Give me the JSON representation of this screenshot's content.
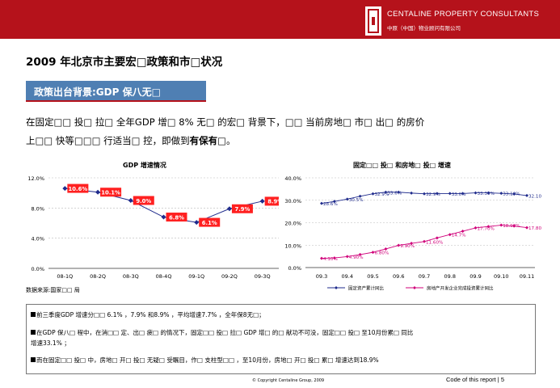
{
  "header": {
    "brand_en": "CENTALINE PROPERTY CONSULTANTS",
    "brand_cn": "中原（中国）物业顾问有限公司",
    "logo_icon": "centaline-logo-icon",
    "bar_color": "#b5121b"
  },
  "title": "2009 年北京市主要宏□政策和市□状况",
  "section_label": "政策出台背景:GDP 保八无□",
  "body": {
    "line1": "在固定□□ 投□ 拉□ 全年GDP 增□ 8% 无□ 的宏□ 背景下，□□ 当前房地□ 市□ 出□ 的房价",
    "line2_prefix": "上□□ 快等□□□ 行适当□ 控，即做到",
    "line2_bold": "有保有□",
    "line2_suffix": "。"
  },
  "chart_data": [
    {
      "type": "line",
      "title": "GDP 增速情况",
      "categories": [
        "08-1Q",
        "08-2Q",
        "08-3Q",
        "08-4Q",
        "09-1Q",
        "09-2Q",
        "09-3Q"
      ],
      "values": [
        10.6,
        10.1,
        9.0,
        6.8,
        6.1,
        7.9,
        8.9
      ],
      "labels": [
        "10.6%",
        "10.1%",
        "9.0%",
        "6.8%",
        "6.1%",
        "7.9%",
        "8.9%"
      ],
      "yticks": [
        "0.0%",
        "4.0%",
        "8.0%",
        "12.0%"
      ],
      "ylim": [
        0,
        12
      ],
      "grid": true,
      "line_color": "#1f2b8c",
      "label_bg": "#ff2020"
    },
    {
      "type": "line",
      "title": "固定□□ 投□ 和房地□ 投□ 增速",
      "categories": [
        "09.3",
        "09.4",
        "09.5",
        "09.6",
        "09.7",
        "09.8",
        "09.9",
        "09.10",
        "09.11"
      ],
      "yticks": [
        "0.0%",
        "10.0%",
        "20.0%",
        "30.0%",
        "40.0%"
      ],
      "ylim": [
        0,
        40
      ],
      "grid": true,
      "legend_position": "bottom",
      "x": [
        1,
        1.5,
        2,
        2.5,
        3,
        3.5,
        4,
        4.5,
        5,
        5.5,
        6,
        6.5,
        7,
        7.5,
        8,
        8.5,
        9
      ],
      "series": [
        {
          "name": "固定资产累计同比",
          "color": "#1f2b8c",
          "values": [
            28.6,
            29.5,
            30.5,
            31.8,
            32.9,
            33.6,
            33.6,
            33.2,
            32.9,
            33.0,
            33.0,
            33.0,
            33.3,
            33.3,
            33.1,
            32.8,
            32.1
          ],
          "labels": [
            "28.6%",
            null,
            "30.5%",
            null,
            "32.9%",
            "33.6%",
            null,
            null,
            "32.9%",
            null,
            "33.0%",
            null,
            "33.30%",
            null,
            "33.10%",
            null,
            "32.10%"
          ]
        },
        {
          "name": "房地产开发企业完成投资累计同比",
          "color": "#d0007a",
          "values": [
            4.1,
            4.3,
            4.9,
            5.8,
            6.8,
            8.3,
            9.9,
            10.8,
            11.6,
            13.2,
            14.7,
            16.2,
            17.7,
            18.3,
            18.9,
            18.5,
            17.8
          ],
          "labels": [
            "4.10%",
            null,
            "4.90%",
            null,
            "6.80%",
            null,
            "9.90%",
            null,
            "11.60%",
            null,
            "14.7%",
            null,
            "17.70%",
            null,
            "18.90%",
            null,
            "17.80%"
          ]
        }
      ]
    }
  ],
  "source": "数据来源:国家□□ 局",
  "notes": [
    "前三季度GDP 增速分□□ 6.1% ，7.9% 和8.9% ，平均增速7.7% ，全年保8无□；",
    "在GDP 保八□ 程中，在消□□ 定、出□ 疲□ 的情况下，固定□□ 投□ 拉□ GDP 增□ 的□ 献功不可没，固定□□ 投□ 至10月份累□ 同比",
    "增速33.1% ；",
    "而在固定□□ 投□ 中，房地□ 开□ 投□ 无疑□ 受瞩目，作□ 支柱型□□ ，至10月份，房地□ 开□ 投□ 累□ 增速达到18.9%"
  ],
  "footer": {
    "copyright": "© Copyright Centaline Group, 2009",
    "page_info": "Code of this report  |  5"
  }
}
